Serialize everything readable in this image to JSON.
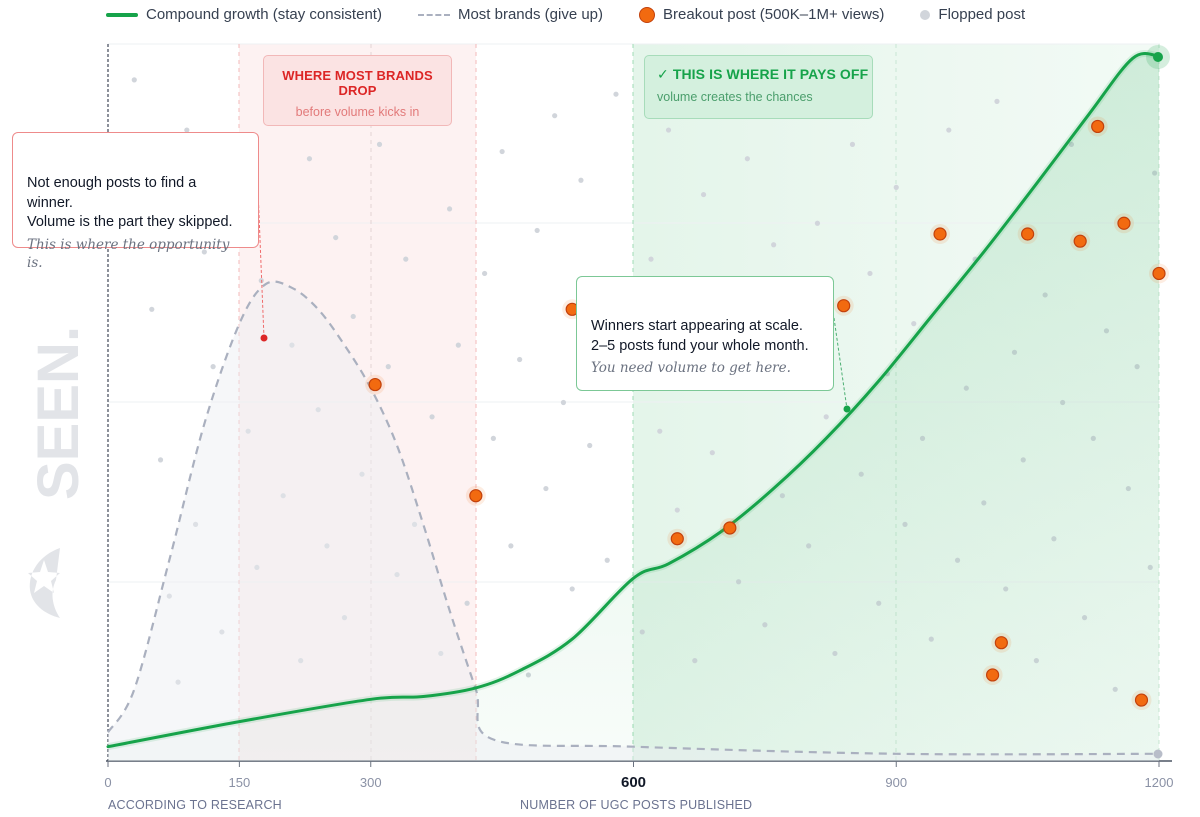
{
  "legend": {
    "compound": "Compound growth (stay consistent)",
    "brands": "Most brands (give up)",
    "breakout": "Breakout post (500K–1M+ views)",
    "flopped": "Flopped post"
  },
  "zones": {
    "drop_title": "WHERE MOST BRANDS DROP",
    "drop_sub": "before volume kicks in",
    "payoff_title": "✓  THIS IS WHERE IT PAYS OFF",
    "payoff_sub": "volume creates the chances"
  },
  "callouts": {
    "left_line1": "Not enough posts to find a winner.",
    "left_line2": "Volume is the part they skipped.",
    "left_italic": "This is where the opportunity is.",
    "right_line1": "Winners start appearing at scale.",
    "right_line2": "2–5 posts fund your whole month.",
    "right_italic": "You need volume to get here."
  },
  "axis": {
    "x_note": "ACCORDING TO RESEARCH",
    "x_title": "NUMBER OF UGC POSTS PUBLISHED"
  },
  "watermark": "SEEN.",
  "colors": {
    "green": "#16a34a",
    "gray_dash": "#aab0bf",
    "orange": "#f26a10",
    "red": "#dc2626",
    "dot": "#d1d5db"
  },
  "chart_data": {
    "type": "line",
    "title": "",
    "xlabel": "NUMBER OF UGC POSTS PUBLISHED",
    "ylabel": "",
    "xlim": [
      0,
      1200
    ],
    "ylim": [
      0,
      100
    ],
    "x_ticks": [
      0,
      150,
      300,
      600,
      900,
      1200
    ],
    "x_tick_labels": [
      "0",
      "150",
      "300",
      "600",
      "900",
      "1200"
    ],
    "highlight_tick": 600,
    "grid": true,
    "zones": [
      {
        "name": "drop",
        "x_range": [
          150,
          420
        ],
        "label": "WHERE MOST BRANDS DROP"
      },
      {
        "name": "payoff",
        "x_range": [
          600,
          1200
        ],
        "label": "THIS IS WHERE IT PAYS OFF"
      }
    ],
    "series": [
      {
        "name": "Compound growth (stay consistent)",
        "style": "solid",
        "points": [
          [
            0,
            2
          ],
          [
            150,
            5.5
          ],
          [
            300,
            8.6
          ],
          [
            360,
            9
          ],
          [
            420,
            10.2
          ],
          [
            470,
            12.6
          ],
          [
            530,
            17
          ],
          [
            600,
            25.5
          ],
          [
            640,
            27.5
          ],
          [
            700,
            32
          ],
          [
            760,
            38
          ],
          [
            820,
            45
          ],
          [
            880,
            53
          ],
          [
            940,
            62
          ],
          [
            1000,
            71
          ],
          [
            1060,
            80.5
          ],
          [
            1120,
            90.2
          ],
          [
            1170,
            98
          ],
          [
            1200,
            98.3
          ]
        ]
      },
      {
        "name": "Most brands (give up)",
        "style": "dashed",
        "points": [
          [
            0,
            4
          ],
          [
            30,
            10
          ],
          [
            70,
            28
          ],
          [
            110,
            47
          ],
          [
            150,
            61
          ],
          [
            180,
            66.5
          ],
          [
            210,
            66
          ],
          [
            240,
            63
          ],
          [
            270,
            58
          ],
          [
            300,
            52
          ],
          [
            330,
            44
          ],
          [
            360,
            33
          ],
          [
            390,
            21
          ],
          [
            420,
            10
          ],
          [
            440,
            3
          ],
          [
            600,
            2
          ],
          [
            900,
            1
          ],
          [
            1200,
            1
          ]
        ]
      }
    ],
    "breakouts": [
      [
        305,
        52.5
      ],
      [
        420,
        37
      ],
      [
        530,
        63
      ],
      [
        650,
        31
      ],
      [
        710,
        32.5
      ],
      [
        840,
        63.5
      ],
      [
        950,
        73.5
      ],
      [
        1010,
        12
      ],
      [
        1020,
        16.5
      ],
      [
        1050,
        73.5
      ],
      [
        1110,
        72.5
      ],
      [
        1130,
        88.5
      ],
      [
        1160,
        75
      ],
      [
        1180,
        8.5
      ],
      [
        1200,
        68
      ]
    ],
    "flopped": [
      [
        30,
        95
      ],
      [
        40,
        76
      ],
      [
        50,
        63
      ],
      [
        60,
        42
      ],
      [
        70,
        23
      ],
      [
        80,
        11
      ],
      [
        90,
        88
      ],
      [
        100,
        33
      ],
      [
        110,
        71
      ],
      [
        120,
        55
      ],
      [
        130,
        18
      ],
      [
        140,
        80
      ],
      [
        160,
        46
      ],
      [
        170,
        27
      ],
      [
        175,
        67
      ],
      [
        190,
        92
      ],
      [
        200,
        37
      ],
      [
        210,
        58
      ],
      [
        220,
        14
      ],
      [
        230,
        84
      ],
      [
        240,
        49
      ],
      [
        250,
        30
      ],
      [
        260,
        73
      ],
      [
        270,
        20
      ],
      [
        280,
        62
      ],
      [
        290,
        40
      ],
      [
        310,
        86
      ],
      [
        320,
        55
      ],
      [
        330,
        26
      ],
      [
        340,
        70
      ],
      [
        350,
        33
      ],
      [
        360,
        92
      ],
      [
        370,
        48
      ],
      [
        380,
        15
      ],
      [
        390,
        77
      ],
      [
        400,
        58
      ],
      [
        410,
        22
      ],
      [
        430,
        68
      ],
      [
        440,
        45
      ],
      [
        450,
        85
      ],
      [
        460,
        30
      ],
      [
        470,
        56
      ],
      [
        480,
        12
      ],
      [
        490,
        74
      ],
      [
        500,
        38
      ],
      [
        510,
        90
      ],
      [
        520,
        50
      ],
      [
        530,
        24
      ],
      [
        540,
        81
      ],
      [
        550,
        44
      ],
      [
        560,
        66
      ],
      [
        570,
        28
      ],
      [
        580,
        93
      ],
      [
        590,
        52
      ],
      [
        610,
        18
      ],
      [
        620,
        70
      ],
      [
        630,
        46
      ],
      [
        640,
        88
      ],
      [
        650,
        35
      ],
      [
        660,
        60
      ],
      [
        670,
        14
      ],
      [
        680,
        79
      ],
      [
        690,
        43
      ],
      [
        700,
        62
      ],
      [
        720,
        25
      ],
      [
        730,
        84
      ],
      [
        740,
        53
      ],
      [
        750,
        19
      ],
      [
        760,
        72
      ],
      [
        770,
        37
      ],
      [
        780,
        91
      ],
      [
        790,
        58
      ],
      [
        800,
        30
      ],
      [
        810,
        75
      ],
      [
        820,
        48
      ],
      [
        830,
        15
      ],
      [
        850,
        86
      ],
      [
        860,
        40
      ],
      [
        870,
        68
      ],
      [
        880,
        22
      ],
      [
        890,
        54
      ],
      [
        900,
        80
      ],
      [
        910,
        33
      ],
      [
        920,
        61
      ],
      [
        930,
        45
      ],
      [
        940,
        17
      ],
      [
        960,
        88
      ],
      [
        970,
        28
      ],
      [
        980,
        52
      ],
      [
        990,
        70
      ],
      [
        1000,
        36
      ],
      [
        1015,
        92
      ],
      [
        1025,
        24
      ],
      [
        1035,
        57
      ],
      [
        1045,
        42
      ],
      [
        1060,
        14
      ],
      [
        1070,
        65
      ],
      [
        1080,
        31
      ],
      [
        1090,
        50
      ],
      [
        1100,
        86
      ],
      [
        1115,
        20
      ],
      [
        1125,
        45
      ],
      [
        1140,
        60
      ],
      [
        1150,
        10
      ],
      [
        1165,
        38
      ],
      [
        1175,
        55
      ],
      [
        1190,
        27
      ],
      [
        1195,
        82
      ]
    ]
  }
}
